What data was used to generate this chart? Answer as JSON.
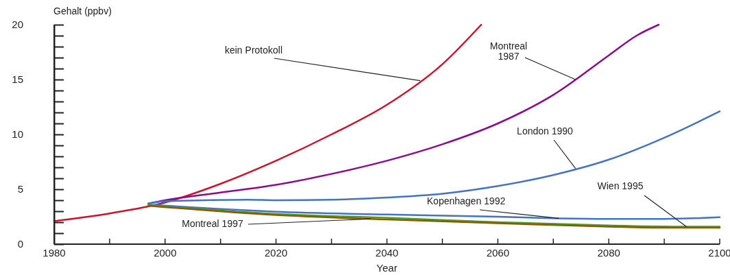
{
  "chart_data": {
    "type": "line",
    "xlabel": "Year",
    "ylabel": "Gehalt (ppbv)",
    "xlim": [
      1980,
      2100
    ],
    "ylim": [
      0,
      20
    ],
    "xticks": [
      1980,
      {
        "value": 1990,
        "label": null
      },
      2000,
      {
        "value": 2010,
        "label": null
      },
      2020,
      {
        "value": 2030,
        "label": null
      },
      2040,
      {
        "value": 2050,
        "label": null
      },
      2060,
      {
        "value": 2070,
        "label": null
      },
      2080,
      {
        "value": 2090,
        "label": null
      },
      2100
    ],
    "yticks": [
      0,
      {
        "value": 1,
        "label": null
      },
      {
        "value": 2,
        "label": null
      },
      {
        "value": 3,
        "label": null
      },
      {
        "value": 4,
        "label": null
      },
      5,
      {
        "value": 6,
        "label": null
      },
      {
        "value": 7,
        "label": null
      },
      {
        "value": 8,
        "label": null
      },
      {
        "value": 9,
        "label": null
      },
      10,
      {
        "value": 11,
        "label": null
      },
      {
        "value": 12,
        "label": null
      },
      {
        "value": 13,
        "label": null
      },
      {
        "value": 14,
        "label": null
      },
      15,
      {
        "value": 16,
        "label": null
      },
      {
        "value": 17,
        "label": null
      },
      {
        "value": 18,
        "label": null
      },
      {
        "value": 19,
        "label": null
      },
      20
    ],
    "grid": false,
    "marker": "none",
    "line_style": "solid",
    "series": [
      {
        "color": "#d0112b",
        "x": [
          1980,
          1990,
          2000,
          2010,
          2020,
          2030,
          2040,
          2050,
          2057
        ],
        "values": [
          2.1,
          2.8,
          3.8,
          5.5,
          7.6,
          10.0,
          12.7,
          16.4,
          20
        ]
      },
      {
        "color": "#8b0a8e",
        "x": [
          1997,
          2000,
          2010,
          2020,
          2030,
          2040,
          2050,
          2060,
          2070,
          2080,
          2085,
          2089
        ],
        "values": [
          3.7,
          4.0,
          4.7,
          5.4,
          6.4,
          7.6,
          9.1,
          11.0,
          13.6,
          17.2,
          19.0,
          20
        ]
      },
      {
        "color": "#4472c4",
        "x": [
          1997,
          2000,
          2015,
          2020,
          2030,
          2040,
          2050,
          2060,
          2070,
          2080,
          2090,
          2100
        ],
        "values": [
          3.7,
          3.9,
          4.05,
          4.0,
          4.05,
          4.25,
          4.6,
          5.3,
          6.3,
          7.7,
          9.7,
          12.1
        ]
      },
      {
        "color": "#4472c4",
        "x": [
          1997,
          2010,
          2020,
          2040,
          2060,
          2071,
          2080,
          2090,
          2100
        ],
        "values": [
          3.6,
          3.2,
          2.95,
          2.7,
          2.5,
          2.35,
          2.3,
          2.3,
          2.45
        ]
      },
      {
        "color": "#4e9a2a",
        "x": [
          1997,
          2020,
          2040,
          2060,
          2080,
          2094,
          2100
        ],
        "values": [
          3.55,
          2.75,
          2.4,
          2.0,
          1.7,
          1.6,
          1.6
        ]
      },
      {
        "color": "#8b5a00",
        "x": [
          1997,
          2020,
          2037,
          2040,
          2060,
          2080,
          2090,
          2100
        ],
        "values": [
          3.5,
          2.65,
          2.3,
          2.25,
          1.9,
          1.6,
          1.5,
          1.5
        ]
      }
    ],
    "annotations": [
      {
        "text": "kein Protokoll",
        "x": 2046,
        "y": 14.9
      },
      {
        "text": "Montreal\n1987",
        "x": 2074,
        "y": 15.0
      },
      {
        "text": "London 1990",
        "x": 2074,
        "y": 6.9
      },
      {
        "text": "Wien 1995",
        "x": 2094,
        "y": 1.6
      },
      {
        "text": "Kopenhagen 1992",
        "x": 2071,
        "y": 2.35
      },
      {
        "text": "Montreal 1997",
        "x": 2037,
        "y": 2.3
      }
    ]
  }
}
